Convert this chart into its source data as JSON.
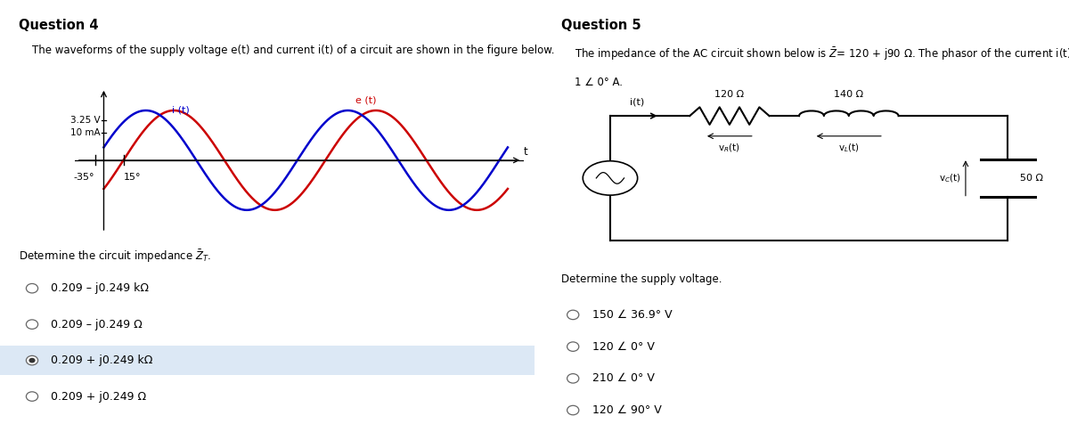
{
  "q4_title": "Question 4",
  "q4_desc": "The waveforms of the supply voltage e(t) and current i(t) of a circuit are shown in the figure below.",
  "q4_waveform_labels": [
    "3.25 V",
    "10 mA"
  ],
  "q4_phase_labels": [
    "-35°",
    "15°"
  ],
  "q4_curve_e_label": "e (t)",
  "q4_curve_i_label": "i (t)",
  "q4_question": "Determine the circuit impedance $\\bar{Z}_T$.",
  "q4_options": [
    "0.209 – j0.249 kΩ",
    "0.209 – j0.249 Ω",
    "0.209 + j0.249 kΩ",
    "0.209 + j0.249 Ω"
  ],
  "q4_selected": 2,
  "q5_title": "Question 5",
  "q5_desc": "The impedance of the AC circuit shown below is $\\bar{Z}$= 120 + j90 Ω. The phasor of the current i(t) is",
  "q5_desc2": "1 ∠ 0° A.",
  "q5_R1_label": "120 Ω",
  "q5_L_label": "140 Ω",
  "q5_C_label": "50 Ω",
  "q5_question": "Determine the supply voltage.",
  "q5_options": [
    "150 ∠ 36.9° V",
    "120 ∠ 0° V",
    "210 ∠ 0° V",
    "120 ∠ 90° V"
  ],
  "q5_selected": -1,
  "selected_bg": "#dce8f5",
  "e_color": "#cc0000",
  "i_color": "#0000cc",
  "lw_wave": 1.8,
  "lw_wire": 1.5
}
